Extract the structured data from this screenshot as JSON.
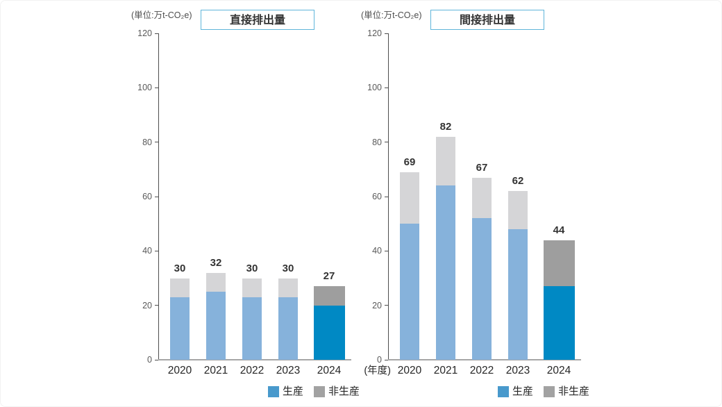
{
  "colors": {
    "series_normal": {
      "生産": "#86b2db",
      "非生産": "#d5d5d7"
    },
    "series_highlight": {
      "生産": "#0089c4",
      "非生産": "#9e9e9e"
    },
    "legend_swatch": {
      "生産": "#4899cc",
      "非生産": "#a2a2a2"
    },
    "title_border": "#5fb5da",
    "axis_line": "#4d4d4d",
    "baseline": "#a6a6a6",
    "value_text": "#333333",
    "axis_text": "#595959"
  },
  "chart_data": [
    {
      "type": "bar",
      "stacked": true,
      "title": "直接排出量",
      "unit": "(単位:万t-CO₂e)",
      "categories": [
        "2020",
        "2021",
        "2022",
        "2023",
        "2024"
      ],
      "series": [
        {
          "name": "生産",
          "values": [
            23,
            25,
            23,
            23,
            20
          ]
        },
        {
          "name": "非生産",
          "values": [
            7,
            7,
            7,
            7,
            7
          ]
        }
      ],
      "totals": [
        30,
        32,
        30,
        30,
        27
      ],
      "ylim": [
        0,
        120
      ],
      "y_ticks": [
        0,
        20,
        40,
        60,
        80,
        100,
        120
      ],
      "x_axis_note": "",
      "legend": [
        "生産",
        "非生産"
      ],
      "legend_position": "bottom-right",
      "grid": false,
      "highlight_category": "2024"
    },
    {
      "type": "bar",
      "stacked": true,
      "title": "間接排出量",
      "unit": "(単位:万t-CO₂e)",
      "categories": [
        "2020",
        "2021",
        "2022",
        "2023",
        "2024"
      ],
      "series": [
        {
          "name": "生産",
          "values": [
            50,
            64,
            52,
            48,
            27
          ]
        },
        {
          "name": "非生産",
          "values": [
            19,
            18,
            15,
            14,
            17
          ]
        }
      ],
      "totals": [
        69,
        82,
        67,
        62,
        44
      ],
      "ylim": [
        0,
        120
      ],
      "y_ticks": [
        0,
        20,
        40,
        60,
        80,
        100,
        120
      ],
      "x_axis_note": "(年度)",
      "legend": [
        "生産",
        "非生産"
      ],
      "legend_position": "bottom-right",
      "grid": false,
      "highlight_category": "2024"
    }
  ]
}
